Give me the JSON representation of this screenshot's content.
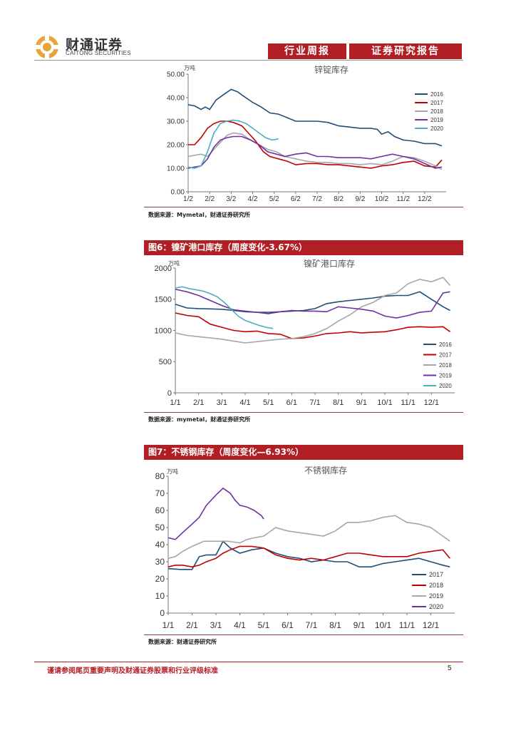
{
  "header": {
    "logo_cn": "财通证券",
    "logo_en": "CAITONG SECURITIES",
    "report_type": "行业周报",
    "report_category": "证券研究报告"
  },
  "figures": {
    "fig5": {
      "source": "数据来源：Mymetal，财通证券研究所"
    },
    "fig6": {
      "title": "图6：镍矿港口库存（周度变化-3.67%）",
      "source": "数据来源：mymetal，财通证券研究所"
    },
    "fig7": {
      "title": "图7：不锈钢库存（周度变化—6.93%）",
      "source": "数据来源：财通证券研究所"
    }
  },
  "footer": {
    "disclaimer": "谨请参阅尾页重要声明及财通证券股票和行业评级标准",
    "page_number": "5"
  },
  "chart_data": [
    {
      "type": "line",
      "title": "锌锭库存",
      "ylabel": "万吨",
      "ylim": [
        0,
        50
      ],
      "yticks": [
        "0.00",
        "10.00",
        "20.00",
        "30.00",
        "40.00",
        "50.00"
      ],
      "xlim": [
        0,
        12
      ],
      "xticks": [
        {
          "x": 0,
          "label": "1/2"
        },
        {
          "x": 1,
          "label": "2/2"
        },
        {
          "x": 2,
          "label": "3/2"
        },
        {
          "x": 3,
          "label": "4/2"
        },
        {
          "x": 4,
          "label": "5/2"
        },
        {
          "x": 5,
          "label": "6/2"
        },
        {
          "x": 6,
          "label": "7/2"
        },
        {
          "x": 7,
          "label": "8/2"
        },
        {
          "x": 8,
          "label": "9/2"
        },
        {
          "x": 9,
          "label": "10/2"
        },
        {
          "x": 10,
          "label": "11/2"
        },
        {
          "x": 11,
          "label": "12/2"
        }
      ],
      "legend_position": "right",
      "series": [
        {
          "name": "2016",
          "color": "#1f4e79",
          "x": [
            0,
            0.3,
            0.6,
            0.8,
            1.0,
            1.3,
            1.6,
            2.0,
            2.3,
            2.6,
            3.0,
            3.4,
            3.8,
            4.2,
            4.6,
            5.0,
            5.5,
            6.0,
            6.5,
            7.0,
            7.5,
            8.0,
            8.5,
            8.8,
            9.0,
            9.3,
            9.6,
            10.0,
            10.5,
            11.0,
            11.5,
            11.8
          ],
          "y": [
            37,
            36.5,
            35,
            36,
            35,
            39,
            41,
            43.5,
            42.5,
            40.5,
            38,
            36,
            33.5,
            33,
            31.5,
            30,
            30,
            30,
            29.5,
            28,
            27.5,
            27,
            27,
            26.5,
            24.5,
            25.5,
            23.5,
            22,
            21.5,
            20.5,
            20.5,
            19.5
          ]
        },
        {
          "name": "2017",
          "color": "#c00000",
          "x": [
            0,
            0.3,
            0.6,
            0.9,
            1.2,
            1.5,
            1.8,
            2.1,
            2.5,
            2.8,
            3.1,
            3.5,
            3.8,
            4.2,
            4.6,
            5.0,
            5.5,
            6.0,
            6.5,
            7.0,
            7.5,
            8.0,
            8.5,
            9.0,
            9.5,
            10.0,
            10.5,
            11.0,
            11.5,
            11.8
          ],
          "y": [
            20,
            20,
            23,
            27,
            29,
            30,
            30,
            29.5,
            28,
            25,
            22,
            17,
            15,
            14,
            13,
            11.5,
            12,
            12,
            11.5,
            11.5,
            11,
            10.5,
            10,
            11,
            11.5,
            12.5,
            13,
            11,
            10.5,
            13.5
          ]
        },
        {
          "name": "2018",
          "color": "#a6a6a6",
          "x": [
            0,
            0.3,
            0.6,
            0.9,
            1.2,
            1.5,
            1.8,
            2.1,
            2.5,
            2.9,
            3.3,
            3.7,
            4.1,
            4.5,
            5.0,
            5.5,
            6.0,
            6.5,
            7.0,
            7.5,
            8.0,
            8.5,
            9.0,
            9.5,
            10.0,
            10.5,
            11.0,
            11.5,
            11.8
          ],
          "y": [
            15,
            15.5,
            16,
            15,
            18,
            21,
            24,
            25,
            24.5,
            22,
            20,
            18,
            17,
            15,
            14,
            13,
            12.5,
            12.5,
            12,
            12,
            11.5,
            12,
            11.5,
            13,
            15,
            14.5,
            13,
            11,
            9.5
          ]
        },
        {
          "name": "2019",
          "color": "#7030a0",
          "x": [
            0,
            0.3,
            0.6,
            0.9,
            1.2,
            1.5,
            1.8,
            2.1,
            2.5,
            2.9,
            3.3,
            3.7,
            4.1,
            4.5,
            5.0,
            5.5,
            6.0,
            6.5,
            7.0,
            7.5,
            8.0,
            8.5,
            9.0,
            9.5,
            10.0,
            10.5,
            11.0,
            11.5,
            11.8
          ],
          "y": [
            10,
            10.5,
            11,
            14,
            19,
            22,
            23,
            23.5,
            23.5,
            22,
            20,
            17,
            16,
            15,
            16,
            16.5,
            15,
            15,
            14.5,
            14.5,
            14.5,
            14,
            15,
            16,
            15,
            14,
            12,
            10,
            10.5
          ]
        },
        {
          "name": "2020",
          "color": "#4bacc6",
          "x": [
            0,
            0.3,
            0.6,
            0.9,
            1.2,
            1.5,
            1.8,
            2.1,
            2.4,
            2.7,
            3.0,
            3.3,
            3.6,
            3.9,
            4.2
          ],
          "y": [
            10.5,
            10,
            11,
            17,
            25,
            29,
            30,
            30.5,
            30,
            29,
            27,
            25,
            23,
            22,
            22.5
          ]
        }
      ]
    },
    {
      "type": "line",
      "title": "镍矿港口库存",
      "ylabel": "万吨",
      "ylim": [
        0,
        2000
      ],
      "yticks": [
        "0",
        "500",
        "1000",
        "1500",
        "2000"
      ],
      "xlim": [
        0,
        12
      ],
      "xticks": [
        {
          "x": 0,
          "label": "1/1"
        },
        {
          "x": 1,
          "label": "2/1"
        },
        {
          "x": 2,
          "label": "3/1"
        },
        {
          "x": 3,
          "label": "4/1"
        },
        {
          "x": 4,
          "label": "5/1"
        },
        {
          "x": 5,
          "label": "6/1"
        },
        {
          "x": 6,
          "label": "7/1"
        },
        {
          "x": 7,
          "label": "8/1"
        },
        {
          "x": 8,
          "label": "9/1"
        },
        {
          "x": 9,
          "label": "10/1"
        },
        {
          "x": 10,
          "label": "11/1"
        },
        {
          "x": 11,
          "label": "12/1"
        }
      ],
      "legend_position": "bottom-right",
      "series": [
        {
          "name": "2016",
          "color": "#1f4e79",
          "x": [
            0,
            0.5,
            1.0,
            1.5,
            2.0,
            2.5,
            3.0,
            3.5,
            4.0,
            4.5,
            5.0,
            5.5,
            6.0,
            6.5,
            7.0,
            7.5,
            8.0,
            8.5,
            9.0,
            9.5,
            10.0,
            10.5,
            11.0,
            11.5,
            11.8
          ],
          "y": [
            1420,
            1360,
            1350,
            1345,
            1340,
            1320,
            1300,
            1290,
            1270,
            1300,
            1310,
            1320,
            1350,
            1430,
            1460,
            1480,
            1500,
            1520,
            1550,
            1560,
            1560,
            1620,
            1500,
            1380,
            1320
          ]
        },
        {
          "name": "2017",
          "color": "#c00000",
          "x": [
            0,
            0.5,
            1.0,
            1.5,
            2.0,
            2.5,
            3.0,
            3.5,
            4.0,
            4.5,
            5.0,
            5.5,
            6.0,
            6.5,
            7.0,
            7.5,
            8.0,
            8.5,
            9.0,
            9.5,
            10.0,
            10.5,
            11.0,
            11.5,
            11.8
          ],
          "y": [
            1280,
            1240,
            1220,
            1100,
            1050,
            1000,
            980,
            990,
            950,
            940,
            870,
            880,
            910,
            950,
            960,
            980,
            960,
            970,
            980,
            1010,
            1050,
            1060,
            1050,
            1060,
            980
          ]
        },
        {
          "name": "2018",
          "color": "#a6a6a6",
          "x": [
            0,
            0.5,
            1.0,
            1.5,
            2.0,
            2.5,
            3.0,
            3.5,
            4.0,
            4.5,
            5.0,
            5.5,
            6.0,
            6.5,
            7.0,
            7.5,
            8.0,
            8.5,
            9.0,
            9.5,
            10.0,
            10.5,
            11.0,
            11.5,
            11.8
          ],
          "y": [
            960,
            920,
            900,
            880,
            860,
            830,
            800,
            820,
            840,
            860,
            870,
            900,
            950,
            1030,
            1150,
            1250,
            1380,
            1450,
            1560,
            1600,
            1750,
            1820,
            1780,
            1850,
            1720
          ]
        },
        {
          "name": "2019",
          "color": "#7030a0",
          "x": [
            0,
            0.5,
            1.0,
            1.5,
            2.0,
            2.5,
            3.0,
            3.5,
            4.0,
            4.5,
            5.0,
            5.5,
            6.0,
            6.5,
            7.0,
            7.5,
            8.0,
            8.5,
            9.0,
            9.5,
            10.0,
            10.5,
            11.0,
            11.5,
            11.8
          ],
          "y": [
            1660,
            1620,
            1560,
            1480,
            1400,
            1330,
            1310,
            1290,
            1290,
            1300,
            1320,
            1310,
            1310,
            1300,
            1380,
            1360,
            1340,
            1310,
            1230,
            1200,
            1240,
            1290,
            1310,
            1600,
            1620
          ]
        },
        {
          "name": "2020",
          "color": "#4bacc6",
          "x": [
            0,
            0.3,
            0.6,
            0.9,
            1.2,
            1.5,
            1.8,
            2.1,
            2.4,
            2.7,
            3.0,
            3.3,
            3.6,
            3.9,
            4.2
          ],
          "y": [
            1680,
            1700,
            1670,
            1650,
            1630,
            1590,
            1540,
            1450,
            1340,
            1230,
            1160,
            1120,
            1080,
            1050,
            1030
          ]
        }
      ]
    },
    {
      "type": "line",
      "title": "不锈钢库存",
      "ylabel": "万吨",
      "ylim": [
        0,
        80
      ],
      "yticks": [
        "0",
        "10",
        "20",
        "30",
        "40",
        "50",
        "60",
        "70",
        "80"
      ],
      "xlim": [
        0,
        12
      ],
      "xticks": [
        {
          "x": 0,
          "label": "1/1"
        },
        {
          "x": 1,
          "label": "2/1"
        },
        {
          "x": 2,
          "label": "3/1"
        },
        {
          "x": 3,
          "label": "4/1"
        },
        {
          "x": 4,
          "label": "5/1"
        },
        {
          "x": 5,
          "label": "6/1"
        },
        {
          "x": 6,
          "label": "7/1"
        },
        {
          "x": 7,
          "label": "8/1"
        },
        {
          "x": 8,
          "label": "9/1"
        },
        {
          "x": 9,
          "label": "10/1"
        },
        {
          "x": 10,
          "label": "11/1"
        },
        {
          "x": 11,
          "label": "12/1"
        }
      ],
      "legend_position": "bottom-right",
      "series": [
        {
          "name": "2017",
          "color": "#1f4e79",
          "x": [
            0,
            0.5,
            1.0,
            1.3,
            1.6,
            2.0,
            2.3,
            2.6,
            3.0,
            3.5,
            4.0,
            4.5,
            5.0,
            5.5,
            6.0,
            6.5,
            7.0,
            7.5,
            8.0,
            8.5,
            9.0,
            9.5,
            10.0,
            10.5,
            11.0,
            11.5,
            11.8
          ],
          "y": [
            26,
            25.5,
            25.5,
            33,
            34,
            34,
            42,
            38,
            35,
            37,
            38,
            35,
            33,
            32,
            30,
            31,
            30,
            30,
            27,
            27,
            29,
            30,
            31,
            32,
            30,
            28,
            27
          ]
        },
        {
          "name": "2018",
          "color": "#c00000",
          "x": [
            0,
            0.3,
            0.6,
            1.0,
            1.3,
            1.6,
            2.0,
            2.3,
            2.6,
            3.0,
            3.5,
            4.0,
            4.5,
            5.0,
            5.5,
            6.0,
            6.5,
            7.0,
            7.5,
            8.0,
            8.5,
            9.0,
            9.5,
            10.0,
            10.5,
            11.0,
            11.5,
            11.8
          ],
          "y": [
            27,
            28,
            28,
            27,
            28,
            30,
            32,
            35,
            37,
            39,
            39,
            38,
            34,
            32,
            31,
            32,
            31,
            33,
            35,
            35,
            34,
            33,
            33,
            33,
            35,
            36,
            37,
            32
          ]
        },
        {
          "name": "2019",
          "color": "#a6a6a6",
          "x": [
            0,
            0.3,
            0.6,
            1.0,
            1.5,
            2.0,
            2.5,
            3.0,
            3.3,
            3.6,
            4.0,
            4.5,
            5.0,
            5.5,
            6.0,
            6.5,
            7.0,
            7.5,
            8.0,
            8.5,
            9.0,
            9.5,
            10.0,
            10.5,
            11.0,
            11.5,
            11.8
          ],
          "y": [
            32,
            33,
            36,
            39,
            42,
            42,
            42,
            41,
            43,
            44,
            45,
            50,
            48,
            47,
            46,
            45,
            48,
            53,
            53,
            54,
            56,
            57,
            53,
            52,
            50,
            45,
            42
          ]
        },
        {
          "name": "2020",
          "color": "#7030a0",
          "x": [
            0,
            0.3,
            0.6,
            1.0,
            1.3,
            1.6,
            2.0,
            2.3,
            2.6,
            2.8,
            3.0,
            3.3,
            3.6,
            3.9,
            4.0
          ],
          "y": [
            44,
            43,
            47,
            52,
            56,
            63,
            69,
            73,
            70,
            66,
            63,
            62,
            60,
            57,
            55
          ]
        }
      ]
    }
  ]
}
